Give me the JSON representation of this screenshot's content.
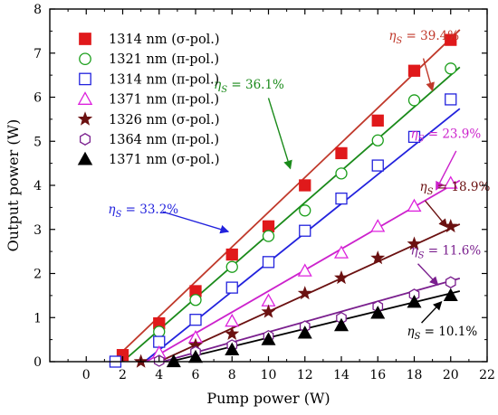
{
  "chart_data": {
    "type": "scatter",
    "xlabel": "Pump power (W)",
    "ylabel": "Output power (W)",
    "xlim": [
      -2,
      22
    ],
    "ylim": [
      0,
      8
    ],
    "xticks": [
      0,
      2,
      4,
      6,
      8,
      10,
      12,
      14,
      16,
      18,
      20,
      22
    ],
    "yticks": [
      0,
      1,
      2,
      3,
      4,
      5,
      6,
      7,
      8
    ],
    "grid": false,
    "legend_position": "top-left",
    "series": [
      {
        "name": "1314 nm (σ-pol.)",
        "marker": "filled-square",
        "color": "#e0191b",
        "fit_color": "#c0392b",
        "x": [
          2,
          4,
          6,
          8,
          10,
          12,
          14,
          16,
          18,
          20
        ],
        "y": [
          0.15,
          0.87,
          1.6,
          2.43,
          3.07,
          4.0,
          4.73,
          5.47,
          6.6,
          7.3
        ],
        "fit": [
          [
            1.4,
            0.0
          ],
          [
            20.5,
            7.53
          ]
        ]
      },
      {
        "name": "1321 nm (π-pol.)",
        "marker": "open-circle",
        "color": "#1a9e1a",
        "fit_color": "#1a8a1a",
        "x": [
          4,
          6,
          8,
          10,
          12,
          14,
          16,
          18,
          20
        ],
        "y": [
          0.68,
          1.4,
          2.15,
          2.85,
          3.43,
          4.27,
          5.02,
          5.93,
          6.65
        ],
        "fit": [
          [
            2.0,
            0.0
          ],
          [
            20.5,
            6.68
          ]
        ]
      },
      {
        "name": "1314 nm (π-pol.)",
        "marker": "open-square",
        "color": "#2222dd",
        "fit_color": "#2222dd",
        "x": [
          1.6,
          4,
          6,
          8,
          10,
          12,
          14,
          16,
          18,
          20
        ],
        "y": [
          0.0,
          0.45,
          0.95,
          1.68,
          2.26,
          2.97,
          3.7,
          4.45,
          5.1,
          5.95
        ],
        "fit": [
          [
            3.2,
            0.0
          ],
          [
            20.5,
            5.74
          ]
        ]
      },
      {
        "name": "1371 nm (π-pol.)",
        "marker": "open-triangle",
        "color": "#dd22dd",
        "fit_color": "#cc22cc",
        "x": [
          4,
          6,
          8,
          10,
          12,
          14,
          16,
          18,
          20
        ],
        "y": [
          0.2,
          0.55,
          0.92,
          1.38,
          2.06,
          2.47,
          3.07,
          3.53,
          4.05
        ],
        "fit": [
          [
            3.3,
            0.0
          ],
          [
            20.5,
            4.11
          ]
        ]
      },
      {
        "name": "1326 nm (σ-pol.)",
        "marker": "filled-star",
        "color": "#6b1111",
        "fit_color": "#6b1111",
        "x": [
          3,
          6,
          8,
          10,
          12,
          14,
          16,
          18,
          20
        ],
        "y": [
          0.0,
          0.37,
          0.63,
          1.13,
          1.55,
          1.9,
          2.35,
          2.67,
          3.07
        ],
        "fit": [
          [
            4.0,
            0.0
          ],
          [
            20.5,
            3.12
          ]
        ]
      },
      {
        "name": "1364 nm (π-pol.)",
        "marker": "open-hexagon",
        "color": "#7a1f8e",
        "fit_color": "#7a1f8e",
        "x": [
          4,
          6,
          8,
          10,
          12,
          14,
          16,
          18,
          20
        ],
        "y": [
          0.02,
          0.22,
          0.37,
          0.58,
          0.8,
          0.99,
          1.25,
          1.52,
          1.8
        ],
        "fit": [
          [
            4.2,
            0.0
          ],
          [
            20.5,
            1.89
          ]
        ]
      },
      {
        "name": "1371 nm (σ-pol.)",
        "marker": "filled-triangle",
        "color": "#000000",
        "fit_color": "#000000",
        "x": [
          4.8,
          6,
          8,
          10,
          12,
          14,
          16,
          18,
          20
        ],
        "y": [
          0.0,
          0.1,
          0.27,
          0.5,
          0.65,
          0.82,
          1.1,
          1.35,
          1.5
        ],
        "fit": [
          [
            4.6,
            0.0
          ],
          [
            20.5,
            1.6
          ]
        ]
      }
    ],
    "annotations": [
      {
        "value": "39.4%",
        "color": "#c0392b",
        "text_at": [
          16.6,
          7.3
        ],
        "arrow_from": [
          18.5,
          6.88
        ],
        "arrow_to": [
          19.0,
          6.15
        ]
      },
      {
        "value": "36.1%",
        "color": "#1a8a1a",
        "text_at": [
          7.0,
          6.2
        ],
        "arrow_from": [
          10.0,
          5.98
        ],
        "arrow_to": [
          11.2,
          4.38
        ]
      },
      {
        "value": "33.2%",
        "color": "#2222dd",
        "text_at": [
          1.2,
          3.36
        ],
        "arrow_from": [
          4.2,
          3.4
        ],
        "arrow_to": [
          7.8,
          2.95
        ]
      },
      {
        "value": "23.9%",
        "color": "#cc22cc",
        "text_at": [
          17.8,
          5.08
        ],
        "arrow_from": [
          20.3,
          4.78
        ],
        "arrow_to": [
          19.2,
          3.9
        ]
      },
      {
        "value": "18.9%",
        "color": "#6b1111",
        "text_at": [
          18.3,
          3.88
        ],
        "arrow_from": [
          18.6,
          3.65
        ],
        "arrow_to": [
          19.8,
          3.05
        ]
      },
      {
        "value": "11.6%",
        "color": "#7a1f8e",
        "text_at": [
          17.8,
          2.43
        ],
        "arrow_from": [
          18.2,
          2.22
        ],
        "arrow_to": [
          19.3,
          1.74
        ]
      },
      {
        "value": "10.1%",
        "color": "#000000",
        "text_at": [
          17.6,
          0.59
        ],
        "arrow_from": [
          18.4,
          0.88
        ],
        "arrow_to": [
          19.5,
          1.36
        ]
      }
    ],
    "eta_symbol": "η",
    "eta_subscript": "S",
    "eta_equals": " = "
  }
}
